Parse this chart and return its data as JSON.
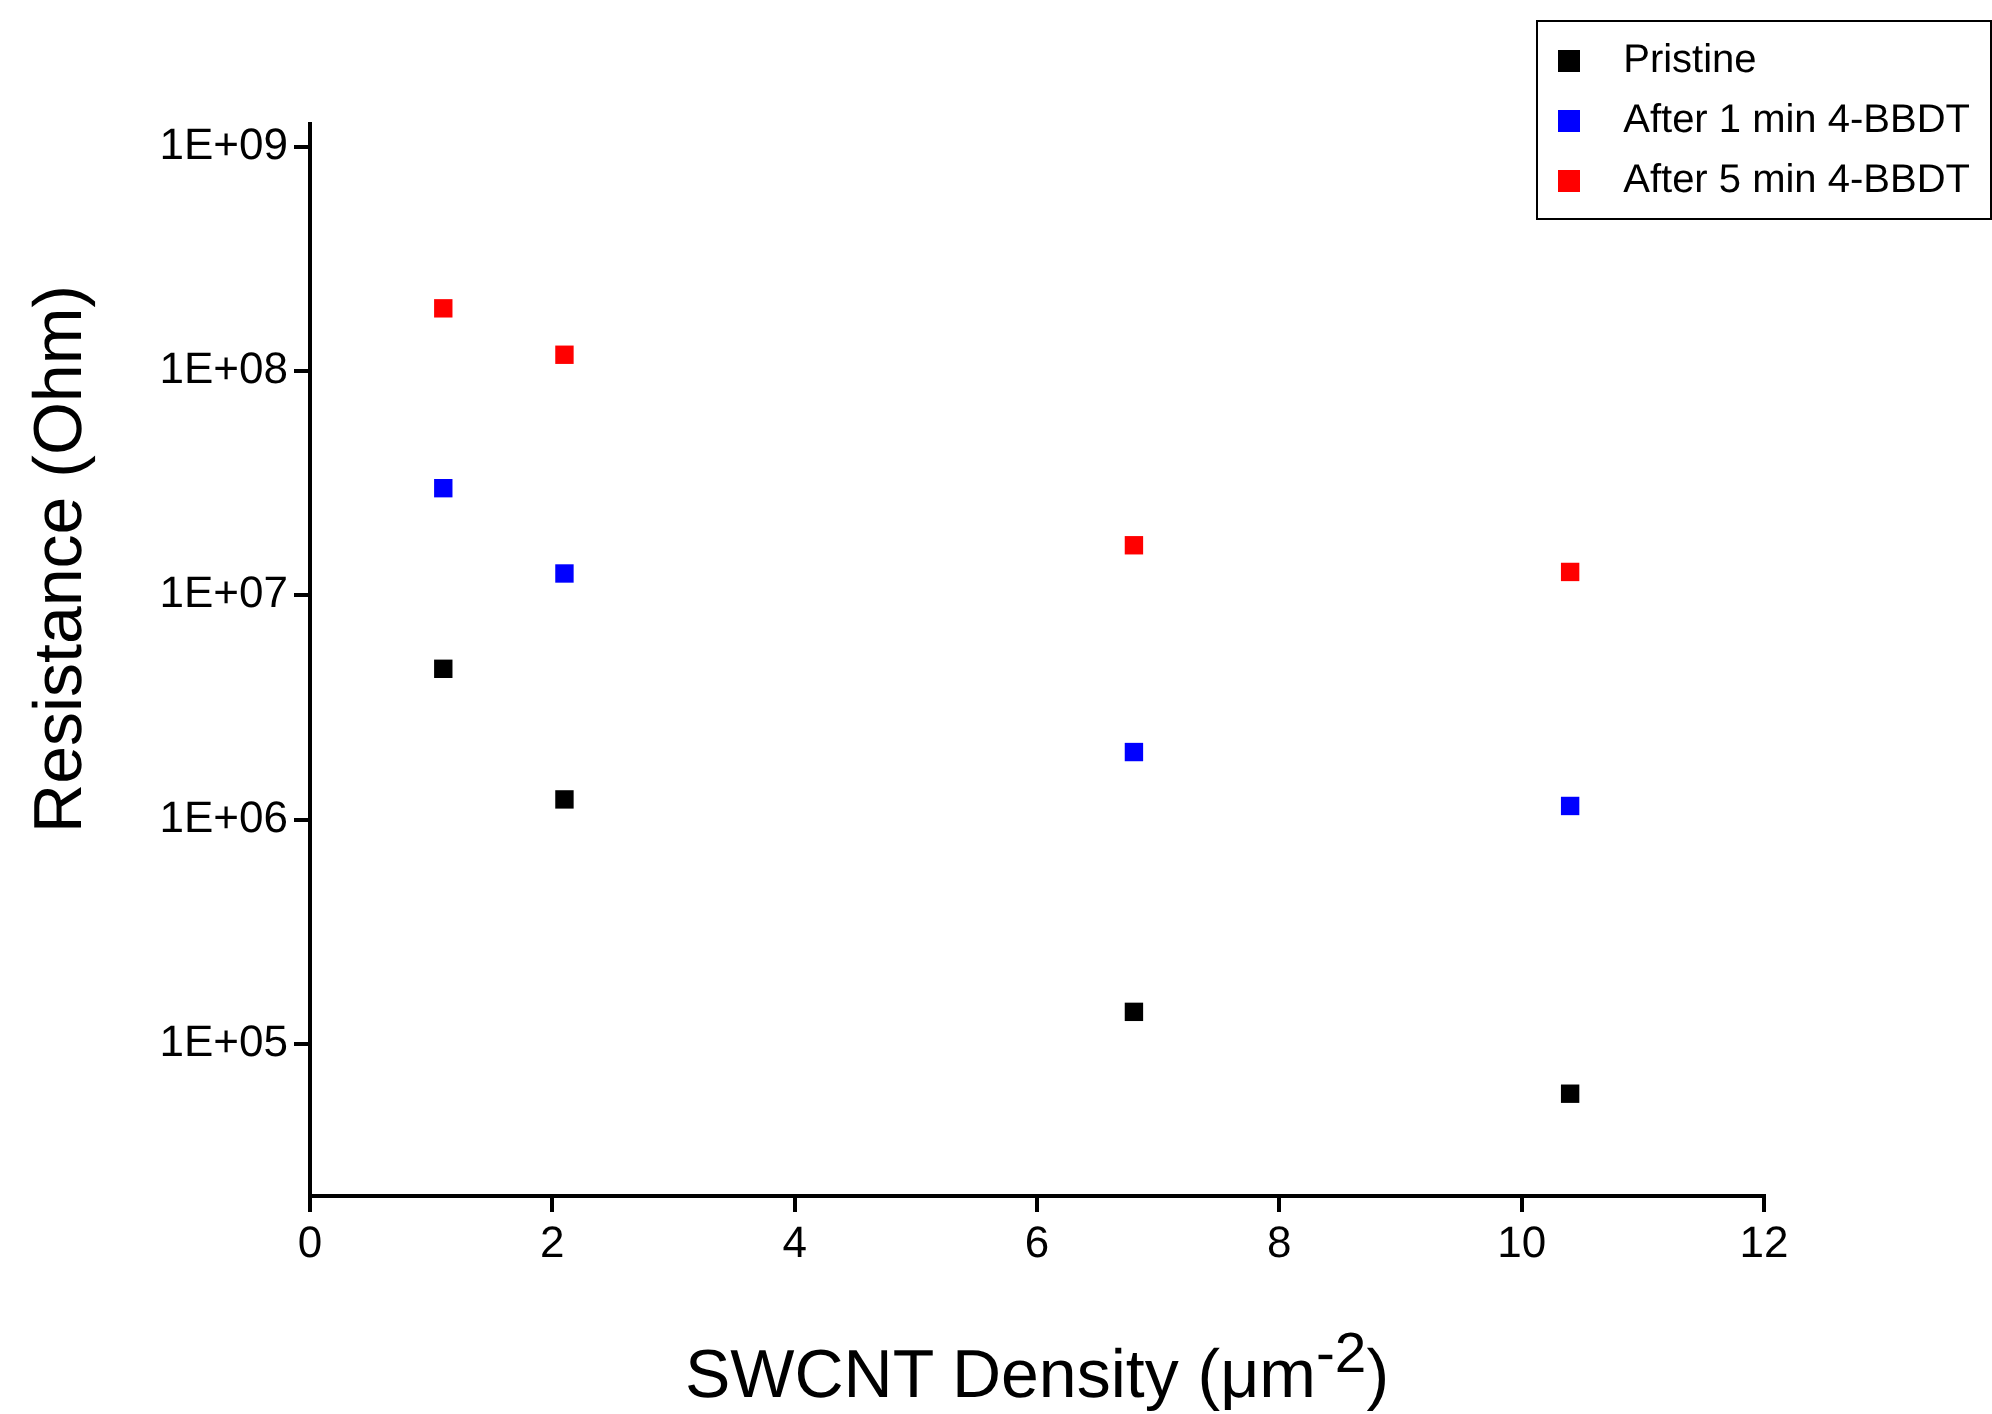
{
  "chart_data": {
    "type": "scatter",
    "xlabel": "SWCNT Density (μm$^{-2}$)",
    "ylabel": "Resistance (Ohm)",
    "x": [
      1.1,
      2.1,
      6.8,
      10.4
    ],
    "series": [
      {
        "name": "Pristine",
        "color": "#000000",
        "values": [
          4700000,
          1230000,
          139000,
          60000
        ]
      },
      {
        "name": "After 1 min 4-BBDT",
        "color": "#0000ff",
        "values": [
          30000000,
          12500000,
          2000000,
          1150000
        ]
      },
      {
        "name": "After 5 min 4-BBDT",
        "color": "#ff0000",
        "values": [
          190000000,
          118000000,
          16700000,
          12700000
        ]
      }
    ],
    "log": "y",
    "xlim": [
      0,
      12
    ],
    "xticks": [
      0,
      2,
      4,
      6,
      8,
      10,
      12
    ],
    "ylim": [
      21000,
      1260000000
    ],
    "yticks": [
      {
        "value": 100000,
        "label": "1E+05"
      },
      {
        "value": 1000000,
        "label": "1E+06"
      },
      {
        "value": 10000000,
        "label": "1E+07"
      },
      {
        "value": 100000000,
        "label": "1E+08"
      },
      {
        "value": 1000000000,
        "label": "1E+09"
      }
    ],
    "grid": false,
    "legend": "top right",
    "marker": "square"
  }
}
